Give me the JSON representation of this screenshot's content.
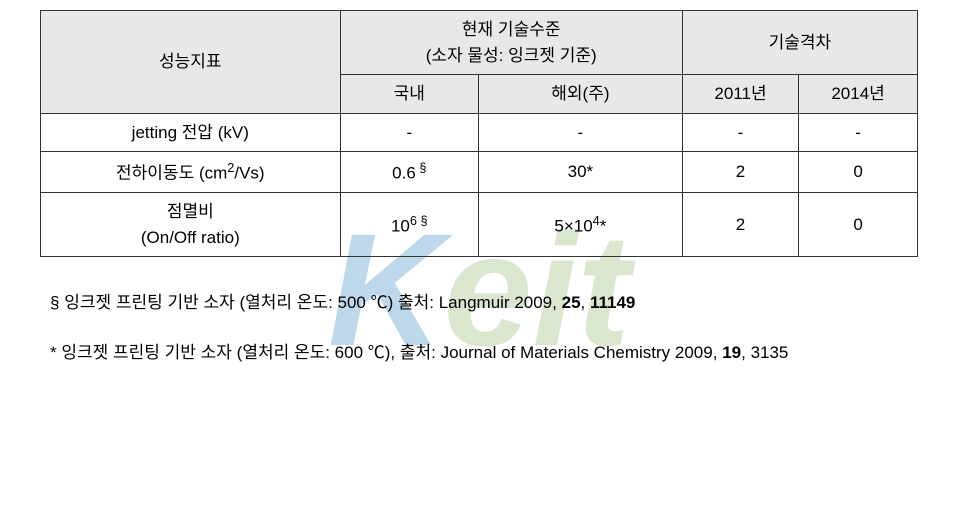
{
  "table": {
    "header_row1": {
      "col1": "성능지표",
      "col2": "현재 기술수준\n(소자 물성: 잉크젯 기준)",
      "col3": "기술격차"
    },
    "header_row2": {
      "col2a": "국내",
      "col2b": "해외(주)",
      "col3a": "2011년",
      "col3b": "2014년"
    },
    "rows": [
      {
        "label": "jetting 전압 (kV)",
        "domestic": "-",
        "overseas": "-",
        "gap2011": "-",
        "gap2014": "-"
      },
      {
        "label_html": "전하이동도 (cm²/Vs)",
        "domestic_html": "0.6 §",
        "overseas": "30*",
        "gap2011": "2",
        "gap2014": "0"
      },
      {
        "label_html": "점멸비\n(On/Off ratio)",
        "domestic_html": "10⁶ §",
        "overseas_html": "5×10⁴*",
        "gap2011": "2",
        "gap2014": "0"
      }
    ]
  },
  "footnotes": {
    "fn1": {
      "marker": "§",
      "text": "잉크젯 프린팅 기반 소자 (열처리 온도: 500 ℃) 출처: Langmuir 2009,",
      "bold1": "25",
      "bold2": "11149"
    },
    "fn2": {
      "marker": "*",
      "text": "잉크젯 프린팅 기반 소자 (열처리 온도: 600 ℃), 출처: Journal of Materials Chemistry 2009,",
      "bold1": "19",
      "rest": "3135"
    }
  }
}
